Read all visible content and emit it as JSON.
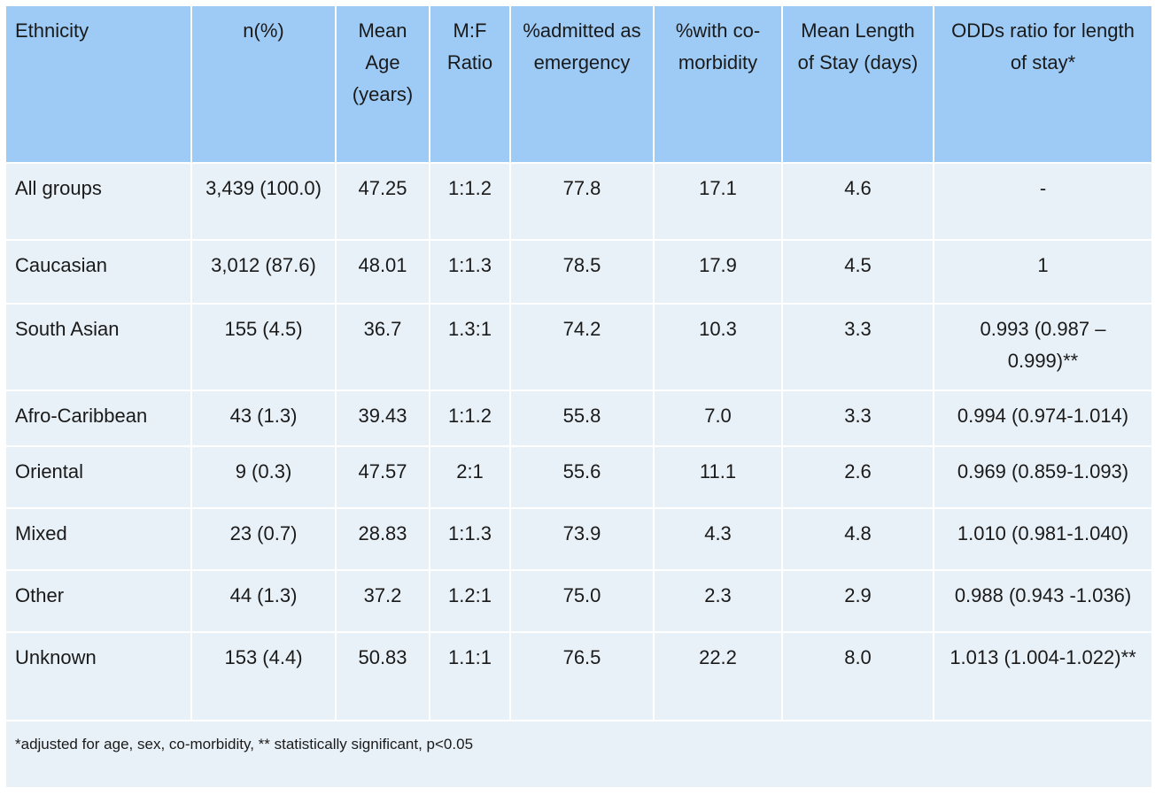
{
  "table": {
    "header": [
      "Ethnicity",
      "n(%)",
      "Mean Age (years)",
      "M:F Ratio",
      "%admitted as emergency",
      "%with co-morbidity",
      "Mean Length of Stay (days)",
      "ODDs ratio for length of stay*"
    ],
    "rows": [
      [
        "All groups",
        "3,439 (100.0)",
        "47.25",
        "1:1.2",
        "77.8",
        "17.1",
        "4.6",
        "-"
      ],
      [
        "Caucasian",
        "3,012 (87.6)",
        "48.01",
        "1:1.3",
        "78.5",
        "17.9",
        "4.5",
        "1"
      ],
      [
        "South Asian",
        "155 (4.5)",
        "36.7",
        "1.3:1",
        "74.2",
        "10.3",
        "3.3",
        "0.993 (0.987 – 0.999)**"
      ],
      [
        "Afro-Caribbean",
        "43 (1.3)",
        "39.43",
        "1:1.2",
        "55.8",
        "7.0",
        "3.3",
        "0.994 (0.974-1.014)"
      ],
      [
        "Oriental",
        "9 (0.3)",
        "47.57",
        "2:1",
        "55.6",
        "11.1",
        "2.6",
        "0.969 (0.859-1.093)"
      ],
      [
        "Mixed",
        "23 (0.7)",
        "28.83",
        "1:1.3",
        "73.9",
        "4.3",
        "4.8",
        "1.010 (0.981-1.040)"
      ],
      [
        "Other",
        "44 (1.3)",
        "37.2",
        "1.2:1",
        "75.0",
        "2.3",
        "2.9",
        "0.988 (0.943 -1.036)"
      ],
      [
        "Unknown",
        "153 (4.4)",
        "50.83",
        "1.1:1",
        "76.5",
        "22.2",
        "8.0",
        "1.013 (1.004-1.022)**"
      ]
    ],
    "footnote": "*adjusted for age, sex, co-morbidity, ** statistically significant, p<0.05"
  }
}
